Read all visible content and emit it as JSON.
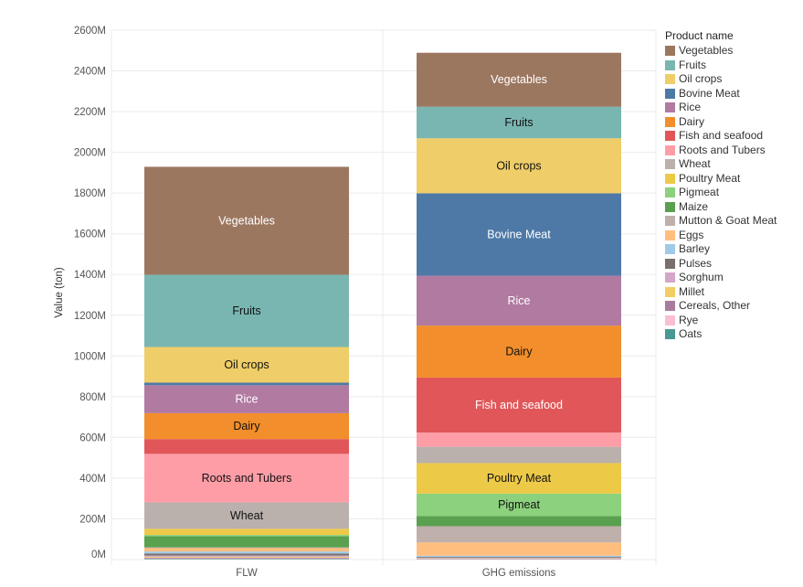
{
  "chart_data": {
    "type": "bar",
    "stacked": true,
    "ylabel": "Value (ton)",
    "xlabel": "",
    "ylim": [
      0,
      2600000000
    ],
    "yticks": [
      {
        "value": 0,
        "label": "0M"
      },
      {
        "value": 200000000,
        "label": "200M"
      },
      {
        "value": 400000000,
        "label": "400M"
      },
      {
        "value": 600000000,
        "label": "600M"
      },
      {
        "value": 800000000,
        "label": "800M"
      },
      {
        "value": 1000000000,
        "label": "1000M"
      },
      {
        "value": 1200000000,
        "label": "1200M"
      },
      {
        "value": 1400000000,
        "label": "1400M"
      },
      {
        "value": 1600000000,
        "label": "1600M"
      },
      {
        "value": 1800000000,
        "label": "1800M"
      },
      {
        "value": 2000000000,
        "label": "2000M"
      },
      {
        "value": 2200000000,
        "label": "2200M"
      },
      {
        "value": 2400000000,
        "label": "2400M"
      },
      {
        "value": 2600000000,
        "label": "2600M"
      }
    ],
    "categories": [
      "FLW",
      "GHG emissions"
    ],
    "legend_title": "Product name",
    "legend_position": "right",
    "series": [
      {
        "name": "Vegetables",
        "color": "#9c7760",
        "label_color": "#ffffff",
        "values": [
          530000000,
          265000000
        ]
      },
      {
        "name": "Fruits",
        "color": "#79b6b2",
        "label_color": "#111111",
        "values": [
          355000000,
          155000000
        ]
      },
      {
        "name": "Oil crops",
        "color": "#efcd68",
        "label_color": "#111111",
        "values": [
          175000000,
          270000000
        ]
      },
      {
        "name": "Bovine Meat",
        "color": "#4e79a7",
        "label_color": "#ffffff",
        "values": [
          13000000,
          405000000
        ]
      },
      {
        "name": "Rice",
        "color": "#b07aa1",
        "label_color": "#ffffff",
        "values": [
          137000000,
          245000000
        ]
      },
      {
        "name": "Dairy",
        "color": "#f28e2b",
        "label_color": "#111111",
        "values": [
          127000000,
          255000000
        ]
      },
      {
        "name": "Fish and seafood",
        "color": "#e15759",
        "label_color": "#ffffff",
        "values": [
          73000000,
          270000000
        ]
      },
      {
        "name": "Roots and Tubers",
        "color": "#ff9da7",
        "label_color": "#111111",
        "values": [
          238000000,
          70000000
        ]
      },
      {
        "name": "Wheat",
        "color": "#bab0ac",
        "label_color": "#111111",
        "values": [
          130000000,
          80000000
        ]
      },
      {
        "name": "Poultry Meat",
        "color": "#edc948",
        "label_color": "#111111",
        "values": [
          30000000,
          150000000
        ]
      },
      {
        "name": "Pigmeat",
        "color": "#8cd17d",
        "label_color": "#111111",
        "values": [
          6000000,
          110000000
        ]
      },
      {
        "name": "Maize",
        "color": "#59a14f",
        "label_color": "#111111",
        "values": [
          55000000,
          50000000
        ]
      },
      {
        "name": "Mutton & Goat Meat",
        "color": "#c0b0ab",
        "label_color": "#111111",
        "values": [
          4000000,
          80000000
        ]
      },
      {
        "name": "Eggs",
        "color": "#ffbe7d",
        "label_color": "#111111",
        "values": [
          16000000,
          65000000
        ]
      },
      {
        "name": "Barley",
        "color": "#a0cbe8",
        "label_color": "#111111",
        "values": [
          10000000,
          6000000
        ]
      },
      {
        "name": "Pulses",
        "color": "#79706e",
        "label_color": "#111111",
        "values": [
          10000000,
          4000000
        ]
      },
      {
        "name": "Sorghum",
        "color": "#d4a6c8",
        "label_color": "#111111",
        "values": [
          6000000,
          3000000
        ]
      },
      {
        "name": "Millet",
        "color": "#f1ce63",
        "label_color": "#111111",
        "values": [
          4000000,
          2000000
        ]
      },
      {
        "name": "Cereals, Other",
        "color": "#a87c9f",
        "label_color": "#111111",
        "values": [
          4000000,
          2000000
        ]
      },
      {
        "name": "Rye",
        "color": "#fabfd2",
        "label_color": "#111111",
        "values": [
          3000000,
          1000000
        ]
      },
      {
        "name": "Oats",
        "color": "#499894",
        "label_color": "#111111",
        "values": [
          3000000,
          1000000
        ]
      }
    ],
    "segment_labels": [
      {
        "category": "FLW",
        "series": [
          "Vegetables",
          "Fruits",
          "Oil crops",
          "Rice",
          "Dairy",
          "Roots and Tubers",
          "Wheat"
        ]
      },
      {
        "category": "GHG emissions",
        "series": [
          "Vegetables",
          "Fruits",
          "Oil crops",
          "Bovine Meat",
          "Rice",
          "Dairy",
          "Fish and seafood",
          "Poultry Meat",
          "Pigmeat"
        ]
      }
    ]
  }
}
